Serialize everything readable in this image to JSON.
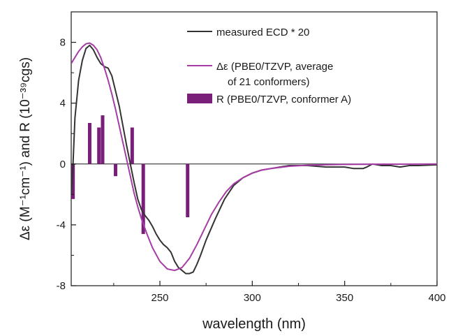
{
  "chart_data": {
    "type": "line",
    "title": "",
    "xlabel": "wavelength (nm)",
    "ylabel": "Δε (M⁻¹cm⁻¹) and R (10⁻³⁹cgs)",
    "xlim": [
      202,
      400
    ],
    "ylim": [
      -8,
      10
    ],
    "x_ticks": [
      250,
      300,
      350,
      400
    ],
    "y_ticks": [
      -8,
      -4,
      0,
      4,
      8
    ],
    "grid": false,
    "legend_position": "top-right",
    "legend": {
      "measured": "measured ECD * 20",
      "calc_line1": "Δε (PBE0/TZVP, average",
      "calc_line2": "of 21 conformers)",
      "bars": "R (PBE0/TZVP, conformer A)"
    },
    "colors": {
      "measured": "#333333",
      "calculated": "#a63da6",
      "bars": "#7a1f79"
    },
    "series": [
      {
        "name": "measured ECD * 20",
        "type": "line",
        "x": [
          202,
          203,
          204,
          206,
          208,
          210,
          212,
          214,
          216,
          218,
          220,
          222,
          224,
          226,
          228,
          230,
          232,
          234,
          236,
          238,
          240,
          242,
          244,
          246,
          248,
          250,
          252,
          254,
          256,
          258,
          260,
          262,
          264,
          266,
          268,
          270,
          272,
          275,
          280,
          285,
          290,
          295,
          300,
          305,
          310,
          315,
          320,
          330,
          340,
          350,
          355,
          360,
          362,
          365,
          370,
          375,
          380,
          385,
          390,
          400
        ],
        "y": [
          -2.0,
          0.0,
          3.0,
          5.5,
          6.8,
          7.6,
          7.8,
          7.5,
          7.0,
          6.6,
          6.4,
          6.3,
          5.8,
          4.8,
          3.8,
          2.5,
          1.2,
          0.0,
          -1.2,
          -2.3,
          -3.0,
          -3.4,
          -3.7,
          -4.1,
          -4.6,
          -5.0,
          -5.3,
          -5.5,
          -5.8,
          -6.4,
          -6.8,
          -7.0,
          -7.2,
          -7.2,
          -7.1,
          -6.6,
          -6.0,
          -5.0,
          -3.6,
          -2.3,
          -1.4,
          -0.9,
          -0.6,
          -0.4,
          -0.3,
          -0.2,
          -0.1,
          -0.1,
          -0.2,
          -0.2,
          -0.3,
          -0.3,
          -0.2,
          0.0,
          -0.1,
          -0.1,
          -0.2,
          -0.1,
          -0.1,
          -0.05
        ]
      },
      {
        "name": "Δε (PBE0/TZVP, average of 21 conformers)",
        "type": "line",
        "x": [
          202,
          204,
          206,
          208,
          210,
          212,
          214,
          216,
          218,
          220,
          222,
          224,
          226,
          228,
          230,
          232,
          234,
          236,
          238,
          240,
          243,
          246,
          250,
          254,
          258,
          262,
          266,
          270,
          274,
          278,
          282,
          286,
          290,
          295,
          300,
          305,
          310,
          320,
          330,
          340,
          350,
          360,
          370,
          380,
          400
        ],
        "y": [
          6.6,
          7.0,
          7.4,
          7.7,
          7.9,
          7.95,
          7.8,
          7.5,
          7.0,
          6.3,
          5.5,
          4.6,
          3.6,
          2.5,
          1.4,
          0.3,
          -0.8,
          -1.9,
          -2.8,
          -3.6,
          -4.6,
          -5.5,
          -6.4,
          -6.9,
          -7.0,
          -6.8,
          -6.2,
          -5.3,
          -4.3,
          -3.3,
          -2.5,
          -1.8,
          -1.3,
          -0.9,
          -0.6,
          -0.4,
          -0.3,
          -0.15,
          -0.08,
          -0.05,
          -0.03,
          -0.02,
          -0.01,
          -0.01,
          0.0
        ]
      },
      {
        "name": "R (PBE0/TZVP, conformer A)",
        "type": "bar",
        "x": [
          203,
          212,
          217,
          219,
          226,
          235,
          241,
          265
        ],
        "y": [
          -2.3,
          2.7,
          2.4,
          3.2,
          -0.8,
          2.4,
          -4.6,
          -3.5
        ]
      }
    ]
  }
}
